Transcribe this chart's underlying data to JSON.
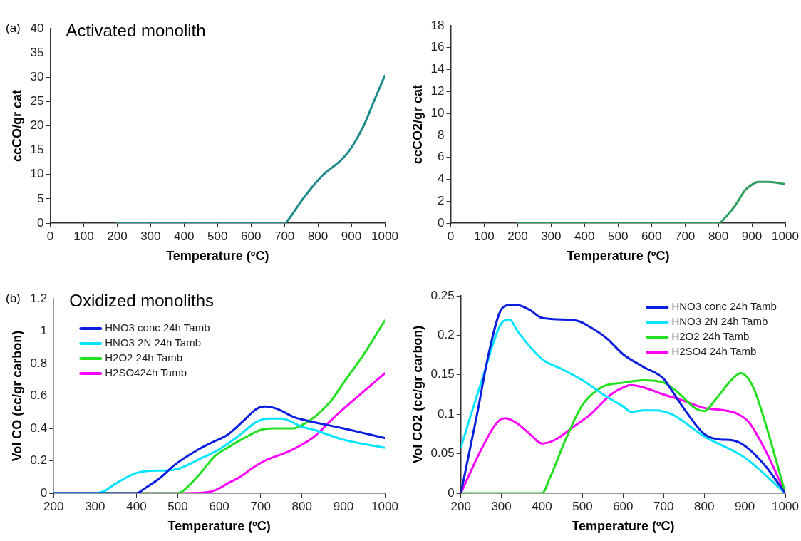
{
  "chart_data": [
    {
      "type": "line",
      "title": "Activated monolith",
      "annotations": [
        "(a)"
      ],
      "xlabel": "Temperature (ºC)",
      "ylabel": "ccCO/gr cat",
      "xlim": [
        0,
        1000
      ],
      "xticks": [
        0,
        100,
        200,
        300,
        400,
        500,
        600,
        700,
        800,
        900,
        1000
      ],
      "ylim": [
        0,
        40
      ],
      "yticks": [
        0,
        5,
        10,
        15,
        20,
        25,
        30,
        35,
        40
      ],
      "grid": false,
      "legend": false,
      "marker": "none",
      "line_style": "solid",
      "series": [
        {
          "color": "#1a8a8a",
          "x": [
            200,
            400,
            600,
            700,
            720,
            750,
            790,
            820,
            870,
            900,
            940,
            970,
            1000
          ],
          "values": [
            0,
            0,
            0,
            0,
            1.5,
            4.5,
            8,
            10.2,
            13,
            15.5,
            20.5,
            25.5,
            30.3
          ]
        }
      ]
    },
    {
      "type": "line",
      "xlabel": "Temperature (ºC)",
      "ylabel": "ccCO2/gr cat",
      "xlim": [
        0,
        1000
      ],
      "xticks": [
        0,
        100,
        200,
        300,
        400,
        500,
        600,
        700,
        800,
        900,
        1000
      ],
      "ylim": [
        0,
        18
      ],
      "yticks": [
        0,
        2,
        4,
        6,
        8,
        10,
        12,
        14,
        16,
        18
      ],
      "grid": false,
      "legend": false,
      "marker": "none",
      "line_style": "solid",
      "series": [
        {
          "color": "#2e9e5e",
          "x": [
            200,
            500,
            800,
            820,
            850,
            880,
            900,
            920,
            950,
            1000
          ],
          "values": [
            0,
            0,
            0,
            0.5,
            1.6,
            3.0,
            3.5,
            3.75,
            3.75,
            3.55
          ]
        }
      ]
    },
    {
      "type": "line",
      "title": "Oxidized monoliths",
      "annotations": [
        "(b)"
      ],
      "xlabel": "Temperature (ºC)",
      "ylabel": "Vol CO (cc/gr carbon)",
      "xlim": [
        200,
        1000
      ],
      "xticks": [
        200,
        300,
        400,
        500,
        600,
        700,
        800,
        900,
        1000
      ],
      "ylim": [
        0,
        1.2
      ],
      "yticks": [
        0,
        0.2,
        0.4,
        0.6,
        0.8,
        1,
        1.2
      ],
      "grid": false,
      "legend": "top left",
      "marker": "none",
      "line_style": "solid",
      "series": [
        {
          "name": "HNO3 conc 24h Tamb",
          "color": "#0a1ee0",
          "x": [
            200,
            400,
            420,
            460,
            490,
            550,
            580,
            620,
            660,
            690,
            710,
            740,
            780,
            800,
            900,
            1000
          ],
          "values": [
            0,
            0,
            0.03,
            0.1,
            0.17,
            0.27,
            0.31,
            0.36,
            0.45,
            0.52,
            0.535,
            0.52,
            0.47,
            0.455,
            0.4,
            0.34
          ]
        },
        {
          "name": "HNO3 2N 24h Tamb",
          "color": "#00e5ff",
          "x": [
            200,
            300,
            320,
            350,
            400,
            450,
            470,
            500,
            560,
            600,
            650,
            690,
            720,
            750,
            800,
            830,
            900,
            1000
          ],
          "values": [
            0,
            0,
            0.01,
            0.06,
            0.125,
            0.14,
            0.14,
            0.15,
            0.22,
            0.27,
            0.36,
            0.44,
            0.46,
            0.46,
            0.41,
            0.39,
            0.33,
            0.28
          ]
        },
        {
          "name": "H2O2 24h Tamb",
          "color": "#22e01e",
          "x": [
            200,
            500,
            510,
            550,
            590,
            620,
            660,
            700,
            730,
            780,
            800,
            830,
            870,
            900,
            950,
            1000
          ],
          "values": [
            0,
            0,
            0.01,
            0.11,
            0.23,
            0.28,
            0.34,
            0.39,
            0.4,
            0.4,
            0.42,
            0.47,
            0.57,
            0.68,
            0.86,
            1.065
          ]
        },
        {
          "name": "H2SO424h Tamb",
          "color": "#ff00ff",
          "x": [
            200,
            520,
            580,
            600,
            620,
            650,
            680,
            710,
            770,
            800,
            830,
            870,
            900,
            950,
            1000
          ],
          "values": [
            0,
            0,
            0.01,
            0.03,
            0.06,
            0.1,
            0.155,
            0.2,
            0.26,
            0.3,
            0.35,
            0.45,
            0.52,
            0.63,
            0.74
          ]
        }
      ]
    },
    {
      "type": "line",
      "xlabel": "Temperature (ºC)",
      "ylabel": "Vol CO2 (cc/gr carbon)",
      "xlim": [
        200,
        1000
      ],
      "xticks": [
        200,
        300,
        400,
        500,
        600,
        700,
        800,
        900,
        1000
      ],
      "ylim": [
        0,
        0.25
      ],
      "yticks": [
        0,
        0.05,
        0.1,
        0.15,
        0.2,
        0.25
      ],
      "grid": false,
      "legend": "top right",
      "marker": "none",
      "line_style": "solid",
      "series": [
        {
          "name": "HNO3 conc 24h Tamb",
          "color": "#0a1ee0",
          "x": [
            200,
            240,
            270,
            300,
            320,
            340,
            370,
            400,
            450,
            490,
            520,
            560,
            600,
            650,
            700,
            720,
            760,
            800,
            840,
            870,
            900,
            950,
            1000
          ],
          "values": [
            0,
            0.1,
            0.18,
            0.233,
            0.238,
            0.238,
            0.232,
            0.222,
            0.22,
            0.218,
            0.21,
            0.196,
            0.176,
            0.16,
            0.145,
            0.13,
            0.1,
            0.075,
            0.068,
            0.067,
            0.06,
            0.035,
            0
          ]
        },
        {
          "name": "HNO3 2N 24h Tamb",
          "color": "#00e5ff",
          "x": [
            200,
            250,
            300,
            320,
            340,
            400,
            450,
            500,
            560,
            600,
            620,
            650,
            680,
            720,
            800,
            900,
            1000
          ],
          "values": [
            0.058,
            0.14,
            0.215,
            0.22,
            0.205,
            0.17,
            0.157,
            0.143,
            0.122,
            0.11,
            0.103,
            0.105,
            0.105,
            0.1,
            0.072,
            0.045,
            0
          ]
        },
        {
          "name": "H2O2 24h Tamb",
          "color": "#22e01e",
          "x": [
            200,
            310,
            400,
            420,
            460,
            500,
            550,
            600,
            650,
            700,
            730,
            780,
            800,
            830,
            870,
            890,
            920,
            950,
            1000
          ],
          "values": [
            0,
            0,
            0,
            0.02,
            0.07,
            0.112,
            0.135,
            0.14,
            0.143,
            0.14,
            0.13,
            0.107,
            0.104,
            0.12,
            0.145,
            0.152,
            0.135,
            0.09,
            0
          ]
        },
        {
          "name": "H2SO4 24h Tamb",
          "color": "#ff00ff",
          "x": [
            200,
            250,
            290,
            310,
            340,
            370,
            400,
            430,
            480,
            520,
            570,
            600,
            620,
            650,
            700,
            750,
            800,
            850,
            880,
            910,
            950,
            1000
          ],
          "values": [
            0,
            0.055,
            0.09,
            0.095,
            0.088,
            0.075,
            0.063,
            0.067,
            0.085,
            0.1,
            0.125,
            0.134,
            0.137,
            0.134,
            0.125,
            0.117,
            0.108,
            0.105,
            0.101,
            0.09,
            0.055,
            0
          ]
        }
      ]
    }
  ]
}
